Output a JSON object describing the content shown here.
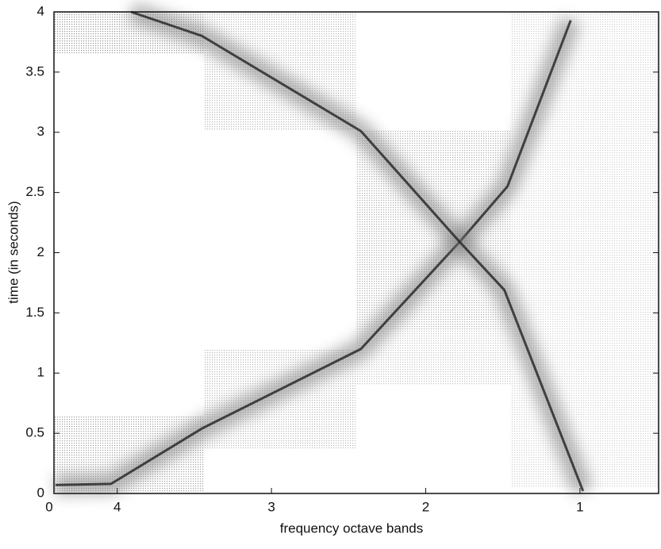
{
  "chart_data": {
    "type": "line",
    "xlabel": "frequency octave bands",
    "ylabel": "time (in seconds)",
    "xlim": [
      0,
      3.92
    ],
    "xticks": [
      0,
      {
        "value": 0.41,
        "label": "4"
      },
      {
        "value": 1.41,
        "label": "3"
      },
      {
        "value": 2.41,
        "label": "2"
      },
      {
        "value": 3.41,
        "label": "1"
      }
    ],
    "ylim": [
      0,
      4
    ],
    "yticks": [
      0,
      0.5,
      1,
      1.5,
      2,
      2.5,
      3,
      3.5,
      4
    ],
    "series": [
      {
        "color": "#2a2a2a",
        "x": [
          0.01,
          0.37,
          0.96,
          1.99,
          2.63,
          2.94,
          3.35
        ],
        "values": [
          0.07,
          0.08,
          0.54,
          1.2,
          2.09,
          2.55,
          3.93
        ]
      },
      {
        "color": "#2a2a2a",
        "x": [
          0.5,
          0.96,
          1.99,
          2.63,
          2.92,
          3.43
        ],
        "values": [
          4,
          3.8,
          3.01,
          2.09,
          1.69,
          0.02
        ]
      }
    ]
  }
}
